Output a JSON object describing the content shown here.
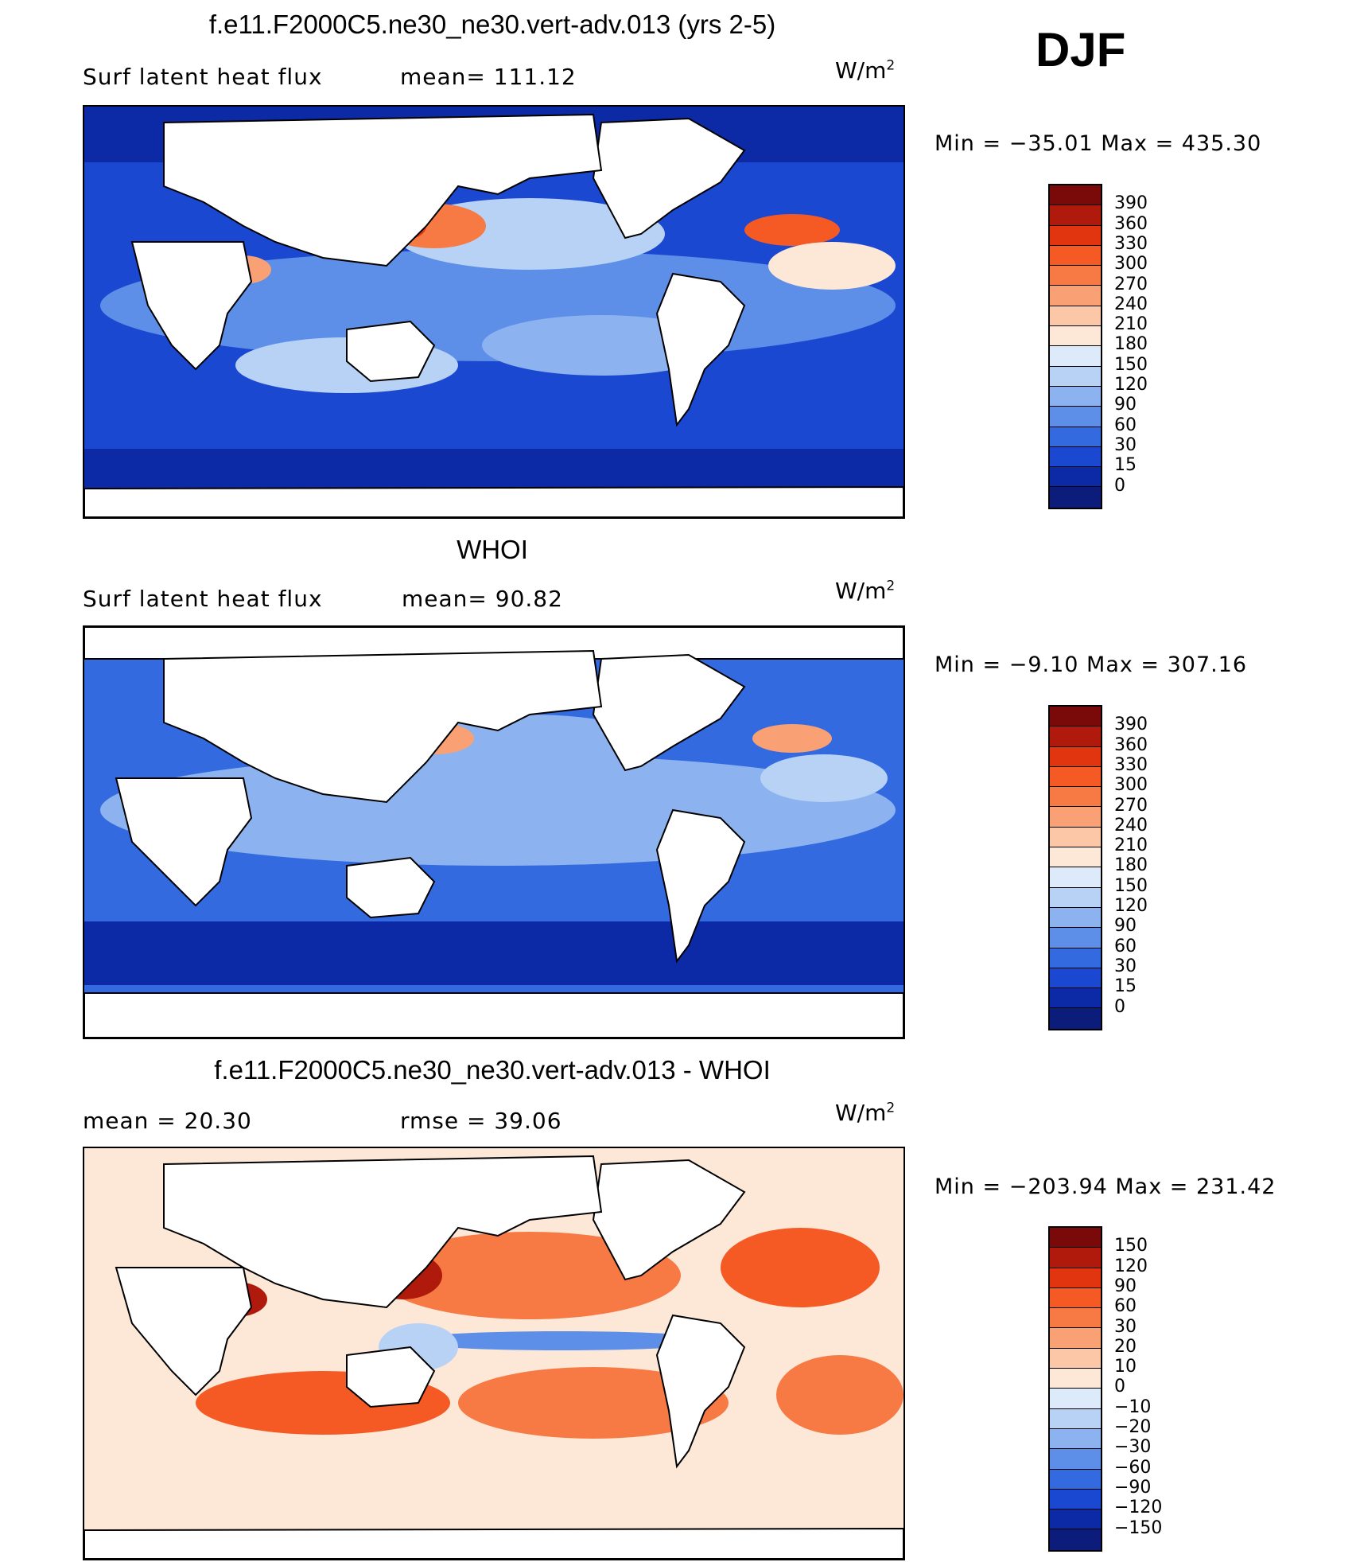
{
  "season": "DJF",
  "panels": [
    {
      "id": "model",
      "title": "f.e11.F2000C5.ne30_ne30.vert-adv.013 (yrs 2-5)",
      "left_text": "Surf latent heat flux",
      "mid_text": "mean= 111.12",
      "units": "W/m",
      "units_sup": "2",
      "minmax": "Min = −35.01 Max = 435.30",
      "colorbar_labels": [
        "390",
        "360",
        "330",
        "300",
        "270",
        "240",
        "210",
        "180",
        "150",
        "120",
        "90",
        "60",
        "30",
        "15",
        "0"
      ]
    },
    {
      "id": "obs",
      "title": "WHOI",
      "left_text": "Surf latent heat flux",
      "mid_text": "mean=  90.82",
      "units": "W/m",
      "units_sup": "2",
      "minmax": "Min =  −9.10 Max = 307.16",
      "colorbar_labels": [
        "390",
        "360",
        "330",
        "300",
        "270",
        "240",
        "210",
        "180",
        "150",
        "120",
        "90",
        "60",
        "30",
        "15",
        "0"
      ]
    },
    {
      "id": "diff",
      "title": "f.e11.F2000C5.ne30_ne30.vert-adv.013 - WHOI",
      "left_text": "mean =   20.30",
      "mid_text": "rmse =   39.06",
      "units": "W/m",
      "units_sup": "2",
      "minmax": "Min = −203.94 Max = 231.42",
      "colorbar_labels": [
        "150",
        "120",
        "90",
        "60",
        "30",
        "20",
        "10",
        "0",
        "−10",
        "−20",
        "−30",
        "−60",
        "−90",
        "−120",
        "−150"
      ]
    }
  ],
  "chart_data": [
    {
      "type": "heatmap",
      "title": "f.e11.F2000C5.ne30_ne30.vert-adv.013 (yrs 2-5)",
      "variable": "Surf latent heat flux",
      "units": "W/m2",
      "mean": 111.12,
      "min": -35.01,
      "max": 435.3,
      "contour_levels": [
        0,
        15,
        30,
        60,
        90,
        120,
        150,
        180,
        210,
        240,
        270,
        300,
        330,
        360,
        390
      ]
    },
    {
      "type": "heatmap",
      "title": "WHOI",
      "variable": "Surf latent heat flux",
      "units": "W/m2",
      "mean": 90.82,
      "min": -9.1,
      "max": 307.16,
      "contour_levels": [
        0,
        15,
        30,
        60,
        90,
        120,
        150,
        180,
        210,
        240,
        270,
        300,
        330,
        360,
        390
      ]
    },
    {
      "type": "heatmap",
      "title": "f.e11.F2000C5.ne30_ne30.vert-adv.013 - WHOI",
      "units": "W/m2",
      "mean": 20.3,
      "rmse": 39.06,
      "min": -203.94,
      "max": 231.42,
      "contour_levels": [
        -150,
        -120,
        -90,
        -60,
        -30,
        -20,
        -10,
        0,
        10,
        20,
        30,
        60,
        90,
        120,
        150
      ]
    }
  ],
  "palettes": {
    "flux": [
      "#7a0a0a",
      "#b01a0c",
      "#e0350f",
      "#f55a24",
      "#f77a45",
      "#f9a174",
      "#fbc7a6",
      "#fde8d8",
      "#dceaf9",
      "#b7d2f5",
      "#8cb3ef",
      "#5d8ee8",
      "#336ae0",
      "#1a48d0",
      "#0c2aa6",
      "#0b1c7a"
    ],
    "diff": [
      "#7a0a0a",
      "#b01a0c",
      "#e0350f",
      "#f55a24",
      "#f77a45",
      "#f9a174",
      "#fbc7a6",
      "#fde8d8",
      "#dceaf9",
      "#b7d2f5",
      "#8cb3ef",
      "#5d8ee8",
      "#336ae0",
      "#1a48d0",
      "#0c2aa6",
      "#0b1c7a"
    ],
    "land": "#ffffff",
    "coast": "#000000"
  }
}
